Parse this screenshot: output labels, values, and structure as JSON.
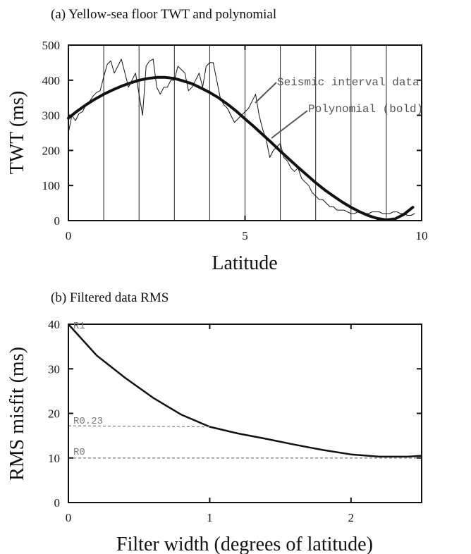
{
  "chart_data": [
    {
      "type": "line",
      "title": "(a) Yellow-sea floor TWT and polynomial",
      "xlabel": "Latitude",
      "ylabel": "TWT (ms)",
      "xlim": [
        0,
        10
      ],
      "ylim": [
        0,
        500
      ],
      "x_ticks": [
        0,
        5,
        10
      ],
      "y_ticks": [
        0,
        100,
        200,
        300,
        400,
        500
      ],
      "vertical_gridlines": [
        1,
        2,
        3,
        4,
        5,
        6,
        7,
        8,
        9
      ],
      "annotations": [
        {
          "text": "Seismic interval data",
          "x": 5.3,
          "y": 335
        },
        {
          "text": "Polynomial (bold)",
          "x": 5.8,
          "y": 235
        }
      ],
      "series": [
        {
          "style": "thin",
          "x": [
            0.0,
            0.1,
            0.2,
            0.3,
            0.4,
            0.5,
            0.6,
            0.7,
            0.8,
            0.9,
            1.0,
            1.1,
            1.2,
            1.3,
            1.4,
            1.5,
            1.6,
            1.7,
            1.8,
            1.9,
            2.0,
            2.1,
            2.2,
            2.3,
            2.4,
            2.5,
            2.6,
            2.7,
            2.8,
            2.9,
            3.0,
            3.1,
            3.2,
            3.3,
            3.4,
            3.5,
            3.6,
            3.7,
            3.8,
            3.9,
            4.0,
            4.1,
            4.2,
            4.3,
            4.4,
            4.5,
            4.6,
            4.7,
            4.8,
            4.9,
            5.0,
            5.1,
            5.2,
            5.3,
            5.4,
            5.5,
            5.6,
            5.7,
            5.8,
            5.9,
            6.0,
            6.1,
            6.2,
            6.3,
            6.4,
            6.5,
            6.6,
            6.7,
            6.8,
            6.9,
            7.0,
            7.1,
            7.2,
            7.3,
            7.4,
            7.5,
            7.6,
            7.7,
            7.8,
            7.9,
            8.0,
            8.1,
            8.2,
            8.3,
            8.4,
            8.5,
            8.6,
            8.7,
            8.8,
            8.9,
            9.0,
            9.1,
            9.2,
            9.3,
            9.4,
            9.5,
            9.6,
            9.7,
            9.8
          ],
          "y": [
            250,
            300,
            285,
            305,
            310,
            330,
            340,
            355,
            365,
            370,
            410,
            445,
            455,
            420,
            440,
            460,
            420,
            380,
            400,
            420,
            360,
            300,
            440,
            455,
            460,
            380,
            360,
            380,
            380,
            400,
            400,
            440,
            430,
            420,
            370,
            380,
            400,
            420,
            380,
            440,
            450,
            450,
            400,
            350,
            330,
            320,
            300,
            280,
            290,
            300,
            310,
            320,
            340,
            360,
            300,
            260,
            230,
            180,
            200,
            210,
            220,
            180,
            170,
            150,
            140,
            150,
            120,
            110,
            100,
            80,
            70,
            60,
            60,
            50,
            40,
            40,
            30,
            30,
            30,
            25,
            20,
            20,
            25,
            20,
            20,
            20,
            25,
            25,
            25,
            20,
            20,
            20,
            25,
            25,
            20,
            20,
            15,
            15,
            20
          ]
        },
        {
          "style": "bold",
          "x": [
            0.0,
            0.25,
            0.5,
            0.75,
            1.0,
            1.25,
            1.5,
            1.75,
            2.0,
            2.25,
            2.5,
            2.75,
            3.0,
            3.25,
            3.5,
            3.75,
            4.0,
            4.25,
            4.5,
            4.75,
            5.0,
            5.25,
            5.5,
            5.75,
            6.0,
            6.25,
            6.5,
            6.75,
            7.0,
            7.25,
            7.5,
            7.75,
            8.0,
            8.25,
            8.5,
            8.75,
            9.0,
            9.25,
            9.5,
            9.75
          ],
          "y": [
            292,
            312,
            330,
            346,
            360,
            372,
            383,
            392,
            400,
            405,
            408,
            408,
            405,
            398,
            390,
            378,
            365,
            350,
            332,
            312,
            290,
            268,
            245,
            222,
            198,
            175,
            152,
            130,
            108,
            88,
            70,
            53,
            38,
            25,
            14,
            6,
            2,
            5,
            18,
            38
          ]
        }
      ]
    },
    {
      "type": "line",
      "title": "(b) Filtered data RMS",
      "xlabel": "Filter width (degrees of latitude)",
      "ylabel": "RMS misfit (ms)",
      "xlim": [
        0,
        2.5
      ],
      "ylim": [
        0,
        40
      ],
      "x_ticks": [
        0,
        1,
        2
      ],
      "y_ticks": [
        0,
        10,
        20,
        30,
        40
      ],
      "series": [
        {
          "style": "solid",
          "x": [
            0.0,
            0.2,
            0.4,
            0.6,
            0.8,
            1.0,
            1.2,
            1.4,
            1.6,
            1.8,
            2.0,
            2.2,
            2.4,
            2.5
          ],
          "y": [
            40,
            33,
            28,
            23.5,
            19.7,
            17,
            15.5,
            14.3,
            13,
            11.8,
            10.8,
            10.3,
            10.3,
            10.5
          ]
        },
        {
          "style": "dashed",
          "x": [
            0.0,
            1.0
          ],
          "y": [
            17.2,
            17.0
          ]
        },
        {
          "style": "dashed",
          "x": [
            0.0,
            2.5
          ],
          "y": [
            10,
            10
          ]
        }
      ],
      "annotations": [
        {
          "text": "R1",
          "x": 0.02,
          "y": 40
        },
        {
          "text": "R0.23",
          "x": 0.02,
          "y": 17.6
        },
        {
          "text": "R0",
          "x": 0.02,
          "y": 10.4
        }
      ]
    }
  ]
}
